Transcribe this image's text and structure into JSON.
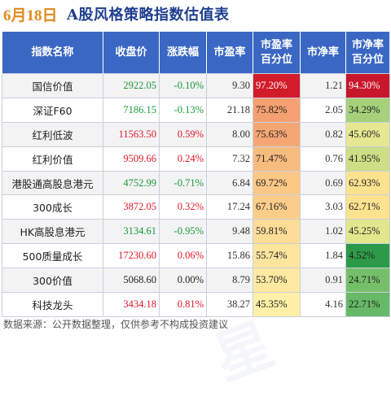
{
  "title": {
    "date": "6月18日",
    "main": "A股风格策略指数估值表"
  },
  "headers": [
    "指数名称",
    "收盘价",
    "涨跌幅",
    "市盈率",
    "市盈率\n百分位",
    "市净率",
    "市净率\n百分位"
  ],
  "rows": [
    {
      "name": "国信价值",
      "close": "2922.05",
      "chg": "-0.10%",
      "pe": "9.30",
      "pe_pct": "97.20%",
      "pb": "1.21",
      "pb_pct": "94.30%"
    },
    {
      "name": "深证F60",
      "close": "7186.15",
      "chg": "-0.13%",
      "pe": "21.18",
      "pe_pct": "75.82%",
      "pb": "2.05",
      "pb_pct": "34.29%"
    },
    {
      "name": "红利低波",
      "close": "11563.50",
      "chg": "0.59%",
      "pe": "8.00",
      "pe_pct": "75.63%",
      "pb": "0.82",
      "pb_pct": "45.60%"
    },
    {
      "name": "红利价值",
      "close": "9509.66",
      "chg": "0.24%",
      "pe": "7.32",
      "pe_pct": "71.47%",
      "pb": "0.76",
      "pb_pct": "41.95%"
    },
    {
      "name": "港股通高股息港元",
      "close": "4752.99",
      "chg": "-0.71%",
      "pe": "6.84",
      "pe_pct": "69.72%",
      "pb": "0.69",
      "pb_pct": "62.93%"
    },
    {
      "name": "300成长",
      "close": "3872.05",
      "chg": "0.32%",
      "pe": "17.24",
      "pe_pct": "67.16%",
      "pb": "3.03",
      "pb_pct": "62.71%"
    },
    {
      "name": "HK高股息港元",
      "close": "3134.61",
      "chg": "-0.95%",
      "pe": "9.48",
      "pe_pct": "59.81%",
      "pb": "1.02",
      "pb_pct": "45.25%"
    },
    {
      "name": "500质量成长",
      "close": "17230.60",
      "chg": "0.06%",
      "pe": "15.86",
      "pe_pct": "55.74%",
      "pb": "1.84",
      "pb_pct": "4.52%"
    },
    {
      "name": "300价值",
      "close": "5068.60",
      "chg": "0.00%",
      "pe": "8.79",
      "pe_pct": "53.70%",
      "pb": "0.91",
      "pb_pct": "24.71%"
    },
    {
      "name": "科技龙头",
      "close": "3434.18",
      "chg": "0.81%",
      "pe": "38.27",
      "pe_pct": "45.35%",
      "pb": "4.16",
      "pb_pct": "22.71%"
    }
  ],
  "colors": {
    "header_bg": "#3a67c3",
    "up": "#e0182a",
    "down": "#1a9a3a",
    "flat": "#222222",
    "pe_pct_bg": [
      "#d21c2a",
      "#f4a070",
      "#f5a673",
      "#f8bb7e",
      "#fbc886",
      "#fccd8a",
      "#fddc96",
      "#fde59d",
      "#fde9a0",
      "#fef0a6"
    ],
    "pb_pct_bg": [
      "#c8172a",
      "#a6d17a",
      "#e5e890",
      "#ccdf86",
      "#fde28f",
      "#fde28f",
      "#e2e78e",
      "#2c9a48",
      "#76bf6a",
      "#66b966"
    ],
    "pe_pct_fg": [
      "#ffffff",
      "#222222",
      "#222222",
      "#222222",
      "#222222",
      "#222222",
      "#222222",
      "#222222",
      "#222222",
      "#222222"
    ],
    "pb_pct_fg": [
      "#ffffff",
      "#222222",
      "#222222",
      "#222222",
      "#222222",
      "#222222",
      "#222222",
      "#222222",
      "#222222",
      "#222222"
    ]
  },
  "footer": "数据来源：公开数据整理，仅供参考不构成投资建议"
}
